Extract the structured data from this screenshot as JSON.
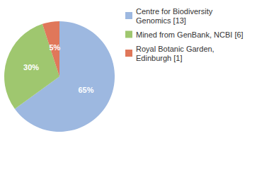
{
  "chart_data": {
    "type": "pie",
    "categories": [
      "Centre for Biodiversity Genomics [13]",
      "Mined from GenBank, NCBI [6]",
      "Royal Botanic Garden, Edinburgh [1]"
    ],
    "values": [
      65,
      30,
      5
    ],
    "value_labels": [
      "65%",
      "30%",
      "5%"
    ],
    "colors": [
      "#9db8e0",
      "#9fc76f",
      "#e0775a"
    ],
    "data_labels": true,
    "legend": "top-right"
  }
}
